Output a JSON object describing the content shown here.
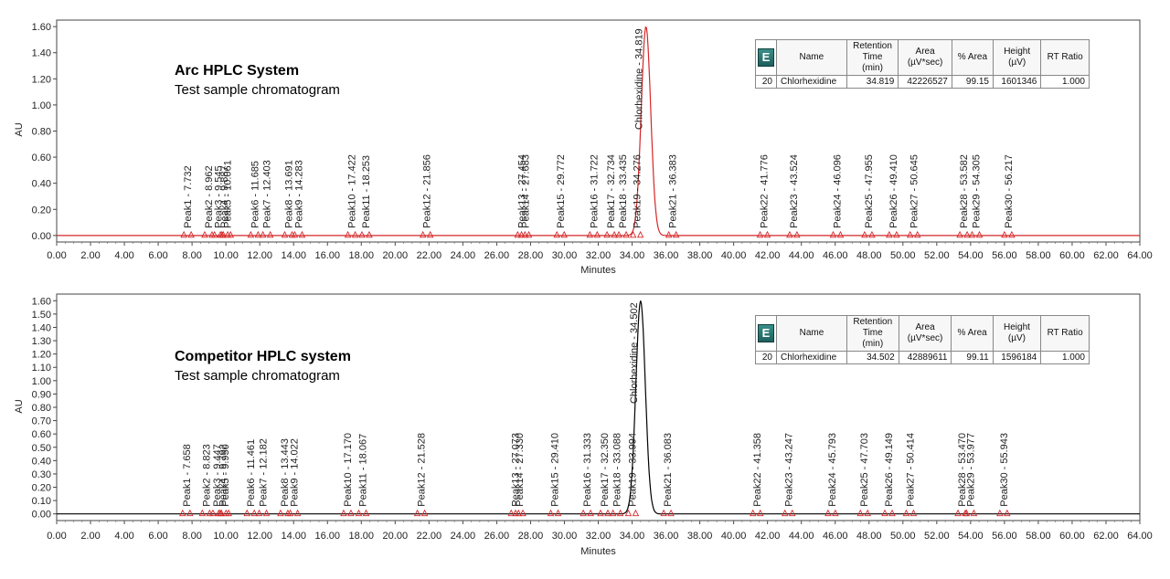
{
  "chart_data": [
    {
      "type": "line",
      "title": "Arc HPLC System",
      "subtitle": "Test sample chromatogram",
      "xlabel": "Minutes",
      "ylabel": "AU",
      "xlim": [
        0,
        64
      ],
      "ylim": [
        -0.05,
        1.65
      ],
      "line_color": "#d62728",
      "grid": false,
      "x_ticks": [
        "0.00",
        "2.00",
        "4.00",
        "6.00",
        "8.00",
        "10.00",
        "12.00",
        "14.00",
        "16.00",
        "18.00",
        "20.00",
        "22.00",
        "24.00",
        "26.00",
        "28.00",
        "30.00",
        "32.00",
        "34.00",
        "36.00",
        "38.00",
        "40.00",
        "42.00",
        "44.00",
        "46.00",
        "48.00",
        "50.00",
        "52.00",
        "54.00",
        "56.00",
        "58.00",
        "60.00",
        "62.00",
        "64.00"
      ],
      "y_ticks": [
        "0.00",
        "0.20",
        "0.40",
        "0.60",
        "0.80",
        "1.00",
        "1.20",
        "1.40",
        "1.60"
      ],
      "main_peak": {
        "label": "Chlorhexidine - 34.819",
        "rt": 34.819,
        "height": 1.6
      },
      "peak_labels": [
        {
          "label": "Peak1 - 7.732",
          "rt": 7.732
        },
        {
          "label": "Peak2 - 8.962",
          "rt": 8.962
        },
        {
          "label": "Peak3 - 9.545",
          "rt": 9.545
        },
        {
          "label": "Peak4 - 9.887",
          "rt": 9.887
        },
        {
          "label": "Peak5 - 10.061",
          "rt": 10.061
        },
        {
          "label": "Peak6 - 11.685",
          "rt": 11.685
        },
        {
          "label": "Peak7 - 12.403",
          "rt": 12.403
        },
        {
          "label": "Peak8 - 13.691",
          "rt": 13.691
        },
        {
          "label": "Peak9 - 14.283",
          "rt": 14.283
        },
        {
          "label": "Peak10 - 17.422",
          "rt": 17.422
        },
        {
          "label": "Peak11 - 18.253",
          "rt": 18.253
        },
        {
          "label": "Peak12 - 21.856",
          "rt": 21.856
        },
        {
          "label": "Peak13 - 27.454",
          "rt": 27.454
        },
        {
          "label": "Peak14 - 27.683",
          "rt": 27.683
        },
        {
          "label": "Peak15 - 29.772",
          "rt": 29.772
        },
        {
          "label": "Peak16 - 31.722",
          "rt": 31.722
        },
        {
          "label": "Peak17 - 32.734",
          "rt": 32.734
        },
        {
          "label": "Peak18 - 33.435",
          "rt": 33.435
        },
        {
          "label": "Peak19 - 34.276",
          "rt": 34.276
        },
        {
          "label": "Peak21 - 36.383",
          "rt": 36.383
        },
        {
          "label": "Peak22 - 41.776",
          "rt": 41.776
        },
        {
          "label": "Peak23 - 43.524",
          "rt": 43.524
        },
        {
          "label": "Peak24 - 46.096",
          "rt": 46.096
        },
        {
          "label": "Peak25 - 47.955",
          "rt": 47.955
        },
        {
          "label": "Peak26 - 49.410",
          "rt": 49.41
        },
        {
          "label": "Peak27 - 50.645",
          "rt": 50.645
        },
        {
          "label": "Peak28 - 53.582",
          "rt": 53.582
        },
        {
          "label": "Peak29 - 54.305",
          "rt": 54.305
        },
        {
          "label": "Peak30 - 56.217",
          "rt": 56.217
        }
      ],
      "table": {
        "icon": "E",
        "headers": [
          "Name",
          "Retention Time (min)",
          "Area (µV*sec)",
          "% Area",
          "Height (µV)",
          "RT Ratio"
        ],
        "header_lines": [
          [
            "Name"
          ],
          [
            "Retention",
            "Time",
            "(min)"
          ],
          [
            "Area",
            "(µV*sec)"
          ],
          [
            "% Area"
          ],
          [
            "Height",
            "(µV)"
          ],
          [
            "RT Ratio"
          ]
        ],
        "row": {
          "index": "20",
          "name": "Chlorhexidine",
          "rt": "34.819",
          "area": "42226527",
          "pct_area": "99.15",
          "height": "1601346",
          "rt_ratio": "1.000"
        }
      }
    },
    {
      "type": "line",
      "title": "Competitor HPLC system",
      "subtitle": "Test sample chromatogram",
      "xlabel": "Minutes",
      "ylabel": "AU",
      "xlim": [
        0,
        64
      ],
      "ylim": [
        -0.05,
        1.65
      ],
      "line_color": "#000000",
      "grid": false,
      "x_ticks": [
        "0.00",
        "2.00",
        "4.00",
        "6.00",
        "8.00",
        "10.00",
        "12.00",
        "14.00",
        "16.00",
        "18.00",
        "20.00",
        "22.00",
        "24.00",
        "26.00",
        "28.00",
        "30.00",
        "32.00",
        "34.00",
        "36.00",
        "38.00",
        "40.00",
        "42.00",
        "44.00",
        "46.00",
        "48.00",
        "50.00",
        "52.00",
        "54.00",
        "56.00",
        "58.00",
        "60.00",
        "62.00",
        "64.00"
      ],
      "y_ticks": [
        "0.00",
        "0.10",
        "0.20",
        "0.30",
        "0.40",
        "0.50",
        "0.60",
        "0.70",
        "0.80",
        "0.90",
        "1.00",
        "1.10",
        "1.20",
        "1.30",
        "1.40",
        "1.50",
        "1.60"
      ],
      "main_peak": {
        "label": "Chlorhexidine - 34.502",
        "rt": 34.502,
        "height": 1.6
      },
      "peak_labels": [
        {
          "label": "Peak1 - 7.658",
          "rt": 7.658
        },
        {
          "label": "Peak2 - 8.823",
          "rt": 8.823
        },
        {
          "label": "Peak3 - 9.447",
          "rt": 9.447
        },
        {
          "label": "Peak4 - 9.792",
          "rt": 9.792
        },
        {
          "label": "Peak5 - 9.950",
          "rt": 9.95
        },
        {
          "label": "Peak6 - 11.461",
          "rt": 11.461
        },
        {
          "label": "Peak7 - 12.182",
          "rt": 12.182
        },
        {
          "label": "Peak8 - 13.443",
          "rt": 13.443
        },
        {
          "label": "Peak9 - 14.022",
          "rt": 14.022
        },
        {
          "label": "Peak10 - 17.170",
          "rt": 17.17
        },
        {
          "label": "Peak11 - 18.067",
          "rt": 18.067
        },
        {
          "label": "Peak12 - 21.528",
          "rt": 21.528
        },
        {
          "label": "Peak13 - 27.073",
          "rt": 27.073
        },
        {
          "label": "Peak14 - 27.330",
          "rt": 27.33
        },
        {
          "label": "Peak15 - 29.410",
          "rt": 29.41
        },
        {
          "label": "Peak16 - 31.333",
          "rt": 31.333
        },
        {
          "label": "Peak17 - 32.350",
          "rt": 32.35
        },
        {
          "label": "Peak18 - 33.088",
          "rt": 33.088
        },
        {
          "label": "Peak19 - 33.994",
          "rt": 33.994
        },
        {
          "label": "Peak21 - 36.083",
          "rt": 36.083
        },
        {
          "label": "Peak22 - 41.358",
          "rt": 41.358
        },
        {
          "label": "Peak23 - 43.247",
          "rt": 43.247
        },
        {
          "label": "Peak24 - 45.793",
          "rt": 45.793
        },
        {
          "label": "Peak25 - 47.703",
          "rt": 47.703
        },
        {
          "label": "Peak26 - 49.149",
          "rt": 49.149
        },
        {
          "label": "Peak27 - 50.414",
          "rt": 50.414
        },
        {
          "label": "Peak28 - 53.470",
          "rt": 53.47
        },
        {
          "label": "Peak29 - 53.977",
          "rt": 53.977
        },
        {
          "label": "Peak30 - 55.943",
          "rt": 55.943
        }
      ],
      "table": {
        "icon": "E",
        "headers": [
          "Name",
          "Retention Time (min)",
          "Area (µV*sec)",
          "% Area",
          "Height (µV)",
          "RT Ratio"
        ],
        "header_lines": [
          [
            "Name"
          ],
          [
            "Retention",
            "Time",
            "(min)"
          ],
          [
            "Area",
            "(µV*sec)"
          ],
          [
            "% Area"
          ],
          [
            "Height",
            "(µV)"
          ],
          [
            "RT Ratio"
          ]
        ],
        "row": {
          "index": "20",
          "name": "Chlorhexidine",
          "rt": "34.502",
          "area": "42889611",
          "pct_area": "99.11",
          "height": "1596184",
          "rt_ratio": "1.000"
        }
      }
    }
  ]
}
